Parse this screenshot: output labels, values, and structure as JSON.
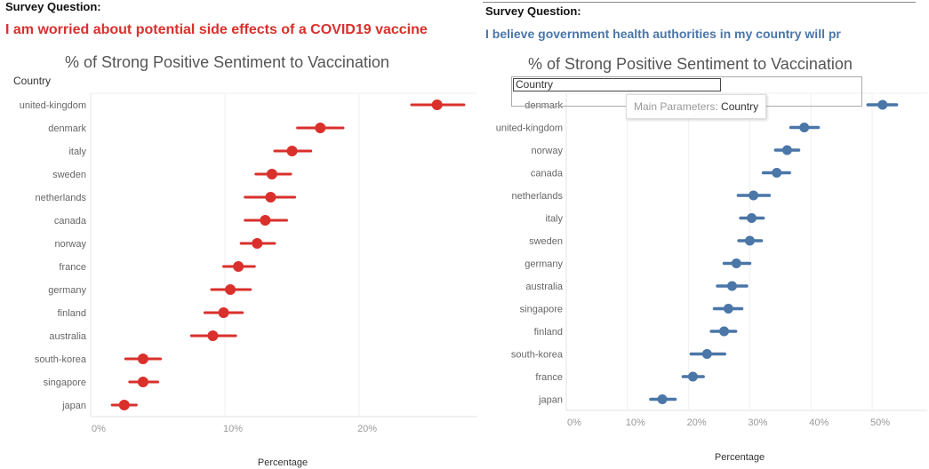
{
  "left": {
    "survey_label": "Survey Question:",
    "question": "I am worried about potential side effects of a COVID19 vaccine",
    "question_color": "#d9302c"
  },
  "right": {
    "survey_label": "Survey Question:",
    "question": "I believe government health authorities in my country will pr",
    "question_color": "#4a76a8",
    "overlay": {
      "field_value": "Country",
      "tooltip_label": "Main Parameters: ",
      "tooltip_value": "Country"
    }
  },
  "chart_data": [
    {
      "type": "scatter",
      "subtype": "dot-with-interval",
      "title": "% of Strong Positive Sentiment to Vaccination",
      "row_header": "Country",
      "xlabel": "Percentage",
      "xlim": [
        0,
        28.8
      ],
      "xticks": [
        0,
        10,
        20
      ],
      "xtick_labels": [
        "0%",
        "10%",
        "20%"
      ],
      "grid": true,
      "color": "#d9302c",
      "categories": [
        "united-kingdom",
        "denmark",
        "italy",
        "sweden",
        "netherlands",
        "canada",
        "norway",
        "france",
        "germany",
        "finland",
        "australia",
        "south-korea",
        "singapore",
        "japan"
      ],
      "values": [
        25.8,
        17.1,
        15.0,
        13.5,
        13.4,
        13.0,
        12.4,
        11.0,
        10.4,
        9.9,
        9.1,
        3.9,
        3.9,
        2.5
      ],
      "low": [
        23.9,
        15.4,
        13.7,
        12.3,
        11.5,
        11.5,
        11.2,
        9.9,
        9.0,
        8.5,
        7.5,
        2.6,
        2.9,
        1.6
      ],
      "high": [
        27.8,
        18.8,
        16.4,
        14.9,
        15.2,
        14.6,
        13.7,
        12.2,
        11.9,
        11.3,
        10.8,
        5.2,
        5.0,
        3.4
      ]
    },
    {
      "type": "scatter",
      "subtype": "dot-with-interval",
      "title": "% of Strong Positive Sentiment to Vaccination",
      "row_header": "Country",
      "xlabel": "Percentage",
      "xlim": [
        0,
        59
      ],
      "xticks": [
        0,
        10,
        20,
        30,
        40,
        50
      ],
      "xtick_labels": [
        "0%",
        "10%",
        "20%",
        "30%",
        "40%",
        "50%"
      ],
      "grid": true,
      "color": "#4a76a8",
      "categories": [
        "denmark",
        "united-kingdom",
        "norway",
        "canada",
        "netherlands",
        "italy",
        "sweden",
        "germany",
        "australia",
        "singapore",
        "finland",
        "south-korea",
        "france",
        "japan"
      ],
      "values": [
        51.7,
        38.9,
        36.1,
        34.4,
        30.6,
        30.3,
        30.0,
        27.8,
        27.1,
        26.5,
        25.8,
        23.0,
        20.7,
        15.7
      ],
      "low": [
        49.3,
        36.7,
        34.2,
        32.2,
        28.1,
        28.5,
        28.2,
        25.8,
        24.7,
        24.2,
        23.7,
        20.4,
        19.1,
        13.8
      ],
      "high": [
        54.0,
        41.2,
        38.0,
        36.5,
        33.2,
        32.2,
        31.9,
        30.0,
        29.5,
        28.7,
        27.7,
        25.9,
        22.4,
        17.8
      ]
    }
  ]
}
